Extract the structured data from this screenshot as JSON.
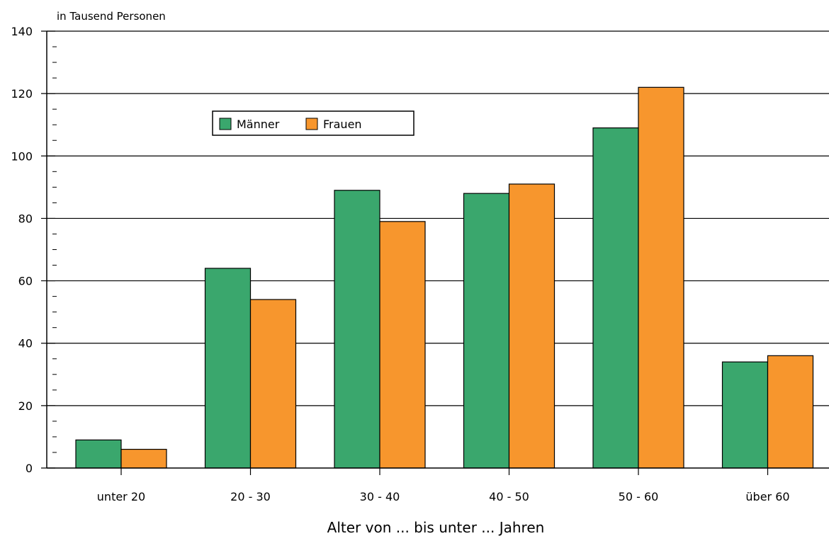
{
  "chart_data": {
    "type": "bar",
    "unit_label": "in Tausend Personen",
    "xlabel": "Alter von ... bis unter ... Jahren",
    "ylabel": "",
    "categories": [
      "unter 20",
      "20 - 30",
      "30 - 40",
      "40 - 50",
      "50 - 60",
      "über 60"
    ],
    "series": [
      {
        "name": "Männer",
        "color": "#3aa76d",
        "values": [
          9,
          64,
          89,
          88,
          109,
          34
        ]
      },
      {
        "name": "Frauen",
        "color": "#f7962d",
        "values": [
          6,
          54,
          79,
          91,
          122,
          36
        ]
      }
    ],
    "ylim": [
      0,
      140
    ],
    "yticks": [
      0,
      20,
      40,
      60,
      80,
      100,
      120,
      140
    ],
    "grid": true,
    "legend_position": "top-left"
  }
}
